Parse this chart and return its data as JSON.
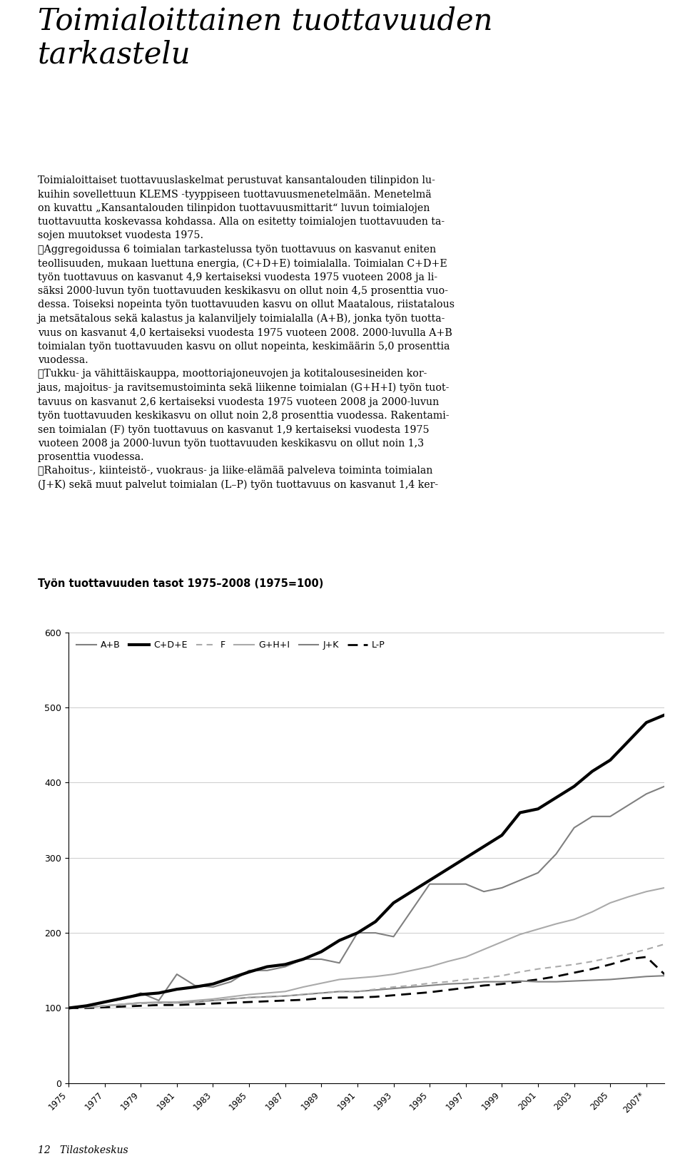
{
  "title_line1": "Toimialoittainen tuottavuuden",
  "title_line2": "tarkastelu",
  "chart_title": "Työn tuottavuuden tasot 1975–2008 (1975=100)",
  "footer": "12   Tilastokeskus",
  "years": [
    1975,
    1976,
    1977,
    1978,
    1979,
    1980,
    1981,
    1982,
    1983,
    1984,
    1985,
    1986,
    1987,
    1988,
    1989,
    1990,
    1991,
    1992,
    1993,
    1994,
    1995,
    1996,
    1997,
    1998,
    1999,
    2000,
    2001,
    2002,
    2003,
    2004,
    2005,
    2006,
    2007,
    2008
  ],
  "series": {
    "A+B": {
      "values": [
        100,
        102,
        108,
        112,
        120,
        110,
        145,
        130,
        128,
        135,
        150,
        150,
        155,
        165,
        165,
        160,
        200,
        200,
        195,
        230,
        265,
        265,
        265,
        255,
        260,
        270,
        280,
        305,
        340,
        355,
        355,
        370,
        385,
        395
      ],
      "color": "#808080",
      "linewidth": 1.5,
      "linestyle": "solid"
    },
    "C+D+E": {
      "values": [
        100,
        103,
        108,
        113,
        118,
        120,
        125,
        128,
        132,
        140,
        148,
        155,
        158,
        165,
        175,
        190,
        200,
        215,
        240,
        255,
        270,
        285,
        300,
        315,
        330,
        360,
        365,
        380,
        395,
        415,
        430,
        455,
        480,
        490
      ],
      "color": "#000000",
      "linewidth": 3.0,
      "linestyle": "solid"
    },
    "F": {
      "values": [
        100,
        101,
        103,
        104,
        106,
        107,
        107,
        108,
        110,
        112,
        114,
        115,
        116,
        118,
        120,
        122,
        122,
        125,
        128,
        130,
        133,
        135,
        138,
        140,
        143,
        148,
        152,
        155,
        158,
        162,
        167,
        172,
        178,
        185
      ],
      "color": "#aaaaaa",
      "linewidth": 1.5,
      "linestyle": "dashed"
    },
    "G+H+I": {
      "values": [
        100,
        101,
        103,
        105,
        107,
        108,
        108,
        110,
        112,
        115,
        118,
        120,
        122,
        128,
        133,
        138,
        140,
        142,
        145,
        150,
        155,
        162,
        168,
        178,
        188,
        198,
        205,
        212,
        218,
        228,
        240,
        248,
        255,
        260
      ],
      "color": "#aaaaaa",
      "linewidth": 1.5,
      "linestyle": "solid"
    },
    "J+K": {
      "values": [
        100,
        101,
        103,
        105,
        107,
        107,
        107,
        108,
        110,
        112,
        114,
        115,
        116,
        118,
        120,
        122,
        122,
        124,
        126,
        128,
        130,
        132,
        133,
        135,
        135,
        136,
        135,
        135,
        136,
        137,
        138,
        140,
        142,
        143
      ],
      "color": "#808080",
      "linewidth": 1.5,
      "linestyle": "solid"
    },
    "L-P": {
      "values": [
        100,
        100,
        101,
        102,
        103,
        104,
        104,
        105,
        106,
        107,
        108,
        109,
        110,
        111,
        113,
        114,
        114,
        115,
        117,
        119,
        121,
        124,
        127,
        130,
        132,
        135,
        138,
        142,
        147,
        152,
        158,
        165,
        168,
        145
      ],
      "color": "#000000",
      "linewidth": 2.0,
      "linestyle": "dashed"
    }
  },
  "xlim": [
    1975,
    2008
  ],
  "ylim": [
    0,
    600
  ],
  "yticks": [
    0,
    100,
    200,
    300,
    400,
    500,
    600
  ],
  "xtick_labels": [
    "1975",
    "1977",
    "1979",
    "1981",
    "1983",
    "1985",
    "1987",
    "1989",
    "1991",
    "1993",
    "1995",
    "1997",
    "1999",
    "2001",
    "2003",
    "2005",
    "2007*"
  ],
  "xtick_years": [
    1975,
    1977,
    1979,
    1981,
    1983,
    1985,
    1987,
    1989,
    1991,
    1993,
    1995,
    1997,
    1999,
    2001,
    2003,
    2005,
    2007
  ],
  "legend_entries": [
    {
      "label": "A+B",
      "color": "#808080",
      "linewidth": 1.5,
      "linestyle": "solid"
    },
    {
      "label": "C+D+E",
      "color": "#000000",
      "linewidth": 3.0,
      "linestyle": "solid"
    },
    {
      "label": "F",
      "color": "#aaaaaa",
      "linewidth": 1.5,
      "linestyle": "dashed"
    },
    {
      "label": "G+H+I",
      "color": "#aaaaaa",
      "linewidth": 1.5,
      "linestyle": "solid"
    },
    {
      "label": "J+K",
      "color": "#808080",
      "linewidth": 1.5,
      "linestyle": "solid"
    },
    {
      "label": "L-P",
      "color": "#000000",
      "linewidth": 2.0,
      "linestyle": "dashed"
    }
  ],
  "body_paragraphs": [
    "Toimialoittaiset tuottavuuslaskelmat perustuvat kansantalouden tilinpidon lu-\nkuihin sovellettuun KLEMS -tyyppiseen tuottavuusmenetelmään. Menetelmä\non kuvattu „Kansantalouden tilinpidon tuottavuusmittarit“ luvun toimialojen\ntuottavuutta koskevassa kohdassa. Alla on esitetty toimialojen tuottavuuden ta-\nsojen muutokset vuodesta 1975.",
    "\tAggregoidussa 6 toimialan tarkastelussa työn tuottavuus on kasvanut eniten\nteollisuuden, mukaan luettuna energia, (C+D+E) toimialalla. Toimialan C+D+E\ntyön tuottavuus on kasvanut 4,9 kertaiseksi vuodesta 1975 vuoteen 2008 ja li-\nsäksi 2000-luvun työn tuottavuuden keskikasvu on ollut noin 4,5 prosenttia vuo-\ndessa. Toiseksi nopeinta työn tuottavuuden kasvu on ollut Maatalous, riistatalous\nja metsätalous sekä kalastus ja kalanviljely toimialalla (A+B), jonka työn tuotta-\nvuus on kasvanut 4,0 kertaiseksi vuodesta 1975 vuoteen 2008. 2000-luvulla A+B\ntoimialan työn tuottavuuden kasvu on ollut nopeinta, keskimäärin 5,0 prosenttia\nvuodessa.",
    "\tTukku- ja vähittäiskauppa, moottoriajoneuvojen ja kotitalousesineiden kor-\njaus, majoitus- ja ravitsemustoiminta sekä liikenne toimialan (G+H+I) työn tuot-\ntavuus on kasvanut 2,6 kertaiseksi vuodesta 1975 vuoteen 2008 ja 2000-luvun\ntyön tuottavuuden keskikasvu on ollut noin 2,8 prosenttia vuodessa. Rakentami-\nsen toimialan (F) työn tuottavuus on kasvanut 1,9 kertaiseksi vuodesta 1975\nvuoteen 2008 ja 2000-luvun työn tuottavuuden keskikasvu on ollut noin 1,3\nprosenttia vuodessa.",
    "\tRahoitus-, kiinteistö-, vuokraus- ja liike-elämää palveleva toiminta toimialan\n(J+K) sekä muut palvelut toimialan (L–P) työn tuottavuus on kasvanut 1,4 ker-"
  ],
  "bg_color": "#ffffff",
  "text_color": "#000000",
  "figure_width": 9.6,
  "figure_height": 16.42
}
